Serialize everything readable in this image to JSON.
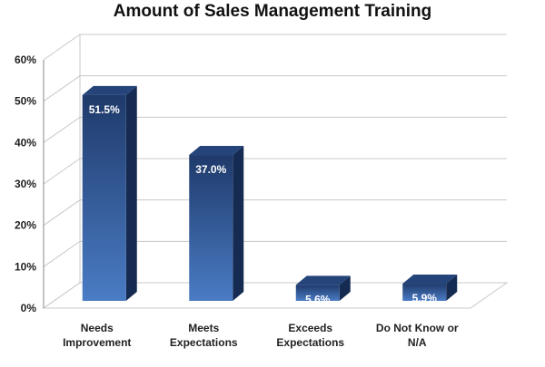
{
  "chart_data": {
    "type": "bar",
    "title": "Amount of Sales Management Training",
    "categories": [
      [
        "Needs",
        "Improvement"
      ],
      [
        "Meets",
        "Expectations"
      ],
      [
        "Exceeds",
        "Expectations"
      ],
      [
        "Do Not Know or",
        "N/A"
      ]
    ],
    "values": [
      51.5,
      37.0,
      5.6,
      5.9
    ],
    "data_labels": [
      "51.5%",
      "37.0%",
      "5.6%",
      "5.9%"
    ],
    "ylim": [
      0,
      60
    ],
    "yticks": [
      0,
      10,
      20,
      30,
      40,
      50,
      60
    ],
    "ytick_labels": [
      "0%",
      "10%",
      "20%",
      "30%",
      "40%",
      "50%",
      "60%"
    ],
    "xlabel": "",
    "ylabel": "",
    "grid": true,
    "style": "3d",
    "colors": {
      "bar_top": "#1f3a6b",
      "bar_bottom": "#4a7cc4",
      "bar_side": "#152b52",
      "bar_cap": "#24447a",
      "grid": "#c8c8c8"
    }
  }
}
